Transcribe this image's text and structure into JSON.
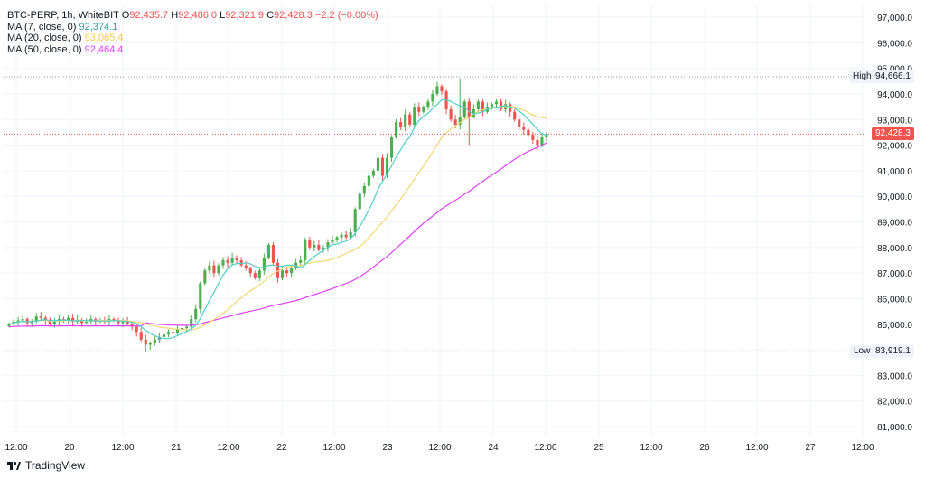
{
  "legend": {
    "symbol": "BTC-PERP, 1h, WhiteBIT",
    "o_label": "O",
    "o": "92,435.7",
    "h_label": "H",
    "h": "92,486.0",
    "l_label": "L",
    "l": "92,321.9",
    "c_label": "C",
    "c": "92,428.3",
    "change": "−2.2 (−0.00%)",
    "ma7_label": "MA (7, close, 0)",
    "ma7": "92,374.1",
    "ma20_label": "MA (20, close, 0)",
    "ma20": "93,065.4",
    "ma50_label": "MA (50, close, 0)",
    "ma50": "92,464.4"
  },
  "markers": {
    "high_label": "High",
    "high_value": "94,666.1",
    "low_label": "Low",
    "low_value": "83,919.1",
    "last_value": "92,428.3"
  },
  "branding": {
    "text": "TradingView"
  },
  "colors": {
    "up": "#26a69a",
    "up_fill": "#4caf50",
    "down": "#ef5350",
    "ma7": "#4dd0c8",
    "ma20": "#f5d76e",
    "ma50": "#e040fb",
    "grid": "#f0f3fa"
  },
  "chart_data": {
    "type": "candlestick",
    "title": "BTC-PERP, 1h, WhiteBIT",
    "y_axis": {
      "ylim": [
        80500,
        97500
      ],
      "ticks": [
        81000,
        82000,
        83000,
        84000,
        85000,
        86000,
        87000,
        88000,
        89000,
        90000,
        91000,
        92000,
        93000,
        94000,
        95000,
        96000,
        97000
      ],
      "tick_labels": [
        "81,000.0",
        "82,000.0",
        "83,000.0",
        "84,000.0",
        "85,000.0",
        "86,000.0",
        "87,000.0",
        "88,000.0",
        "89,000.0",
        "90,000.0",
        "91,000.0",
        "92,000.0",
        "93,000.0",
        "94,000.0",
        "95,000.0",
        "96,000.0",
        "97,000.0"
      ]
    },
    "x_axis": {
      "tick_labels": [
        "12:00",
        "20",
        "12:00",
        "21",
        "12:00",
        "22",
        "12:00",
        "23",
        "12:00",
        "24",
        "12:00",
        "25",
        "12:00",
        "26",
        "12:00",
        "27",
        "12:00"
      ]
    },
    "close_series": [
      85000,
      85100,
      85150,
      85200,
      85050,
      85100,
      85300,
      85250,
      85150,
      85000,
      85100,
      85200,
      85150,
      85250,
      85100,
      85150,
      85050,
      85100,
      85200,
      85100,
      85150,
      85100,
      85200,
      85150,
      85050,
      85100,
      85000,
      84900,
      84700,
      84400,
      84200,
      84250,
      84400,
      84500,
      84600,
      84700,
      84650,
      84800,
      84850,
      84900,
      85200,
      85600,
      86600,
      87100,
      87300,
      87000,
      87300,
      87500,
      87400,
      87600,
      87500,
      87300,
      87200,
      87000,
      86800,
      87100,
      87600,
      88100,
      87400,
      86800,
      87100,
      87000,
      87200,
      87400,
      87500,
      88300,
      88000,
      88100,
      87900,
      88000,
      88200,
      88300,
      88400,
      88500,
      88400,
      88600,
      89500,
      90100,
      90400,
      90800,
      91000,
      91500,
      90800,
      91500,
      92300,
      92900,
      92700,
      93200,
      92800,
      93500,
      93300,
      93500,
      93700,
      94000,
      94300,
      94100,
      93400,
      93000,
      92800,
      93100,
      93700,
      93100,
      93400,
      93700,
      93300,
      93500,
      93600,
      93700,
      93400,
      93600,
      93300,
      93000,
      92700,
      92600,
      92400,
      92200,
      92000,
      92300,
      92428.3
    ],
    "ma_series": [
      {
        "name": "MA (7, close, 0)",
        "last": 92374.1
      },
      {
        "name": "MA (20, close, 0)",
        "last": 93065.4
      },
      {
        "name": "MA (50, close, 0)",
        "last": 92464.4
      }
    ],
    "high": 94666.1,
    "low": 83919.1,
    "last": 92428.3,
    "grid": true
  }
}
